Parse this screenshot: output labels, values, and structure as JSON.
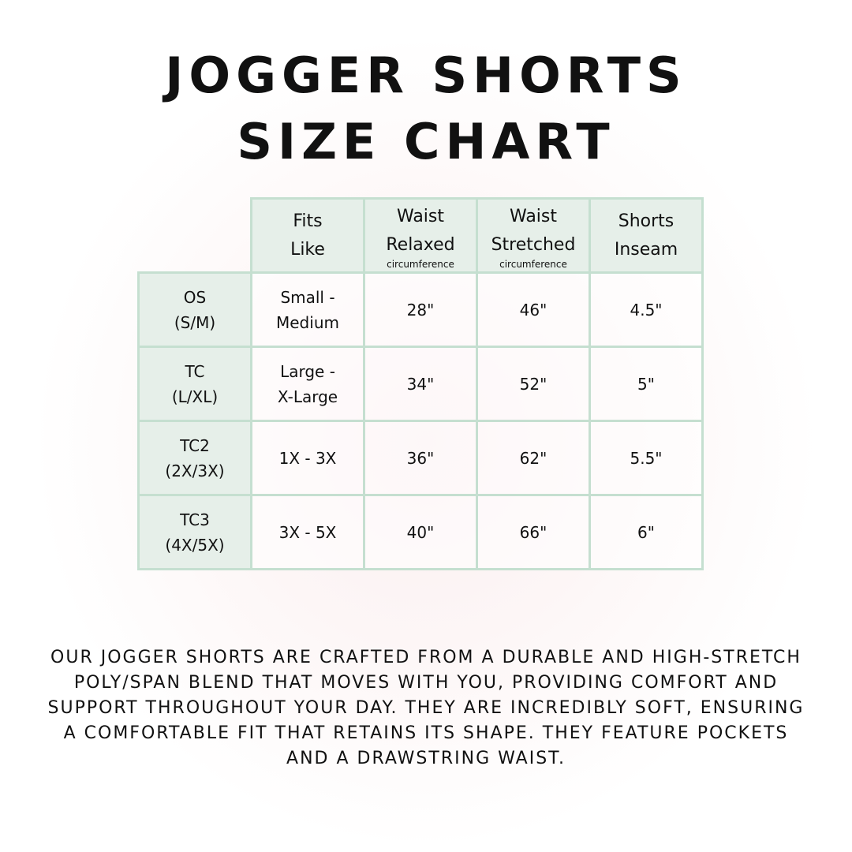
{
  "title_line1": "JOGGER SHORTS",
  "title_line2": "SIZE CHART",
  "table": {
    "headers": [
      {
        "line1": "Fits",
        "line2": "Like",
        "sub": ""
      },
      {
        "line1": "Waist",
        "line2": "Relaxed",
        "sub": "circumference"
      },
      {
        "line1": "Waist",
        "line2": "Stretched",
        "sub": "circumference"
      },
      {
        "line1": "Shorts",
        "line2": "Inseam",
        "sub": ""
      }
    ],
    "rows": [
      {
        "size": "OS",
        "size_alt": "(S/M)",
        "fit1": "Small -",
        "fit2": "Medium",
        "relaxed": "28\"",
        "stretched": "46\"",
        "inseam": "4.5\""
      },
      {
        "size": "TC",
        "size_alt": "(L/XL)",
        "fit1": "Large -",
        "fit2": "X-Large",
        "relaxed": "34\"",
        "stretched": "52\"",
        "inseam": "5\""
      },
      {
        "size": "TC2",
        "size_alt": "(2X/3X)",
        "fit1": "1X - 3X",
        "fit2": "",
        "relaxed": "36\"",
        "stretched": "62\"",
        "inseam": "5.5\""
      },
      {
        "size": "TC3",
        "size_alt": "(4X/5X)",
        "fit1": "3X - 5X",
        "fit2": "",
        "relaxed": "40\"",
        "stretched": "66\"",
        "inseam": "6\""
      }
    ]
  },
  "description": "Our jogger shorts are crafted from a durable and high-stretch poly/span blend that moves with you, providing comfort and support throughout your day. They are incredibly soft, ensuring a comfortable fit that retains its shape. They feature pockets and a drawstring waist.",
  "colors": {
    "header_fill": "#e6efe9",
    "border": "#c5dfd0"
  }
}
